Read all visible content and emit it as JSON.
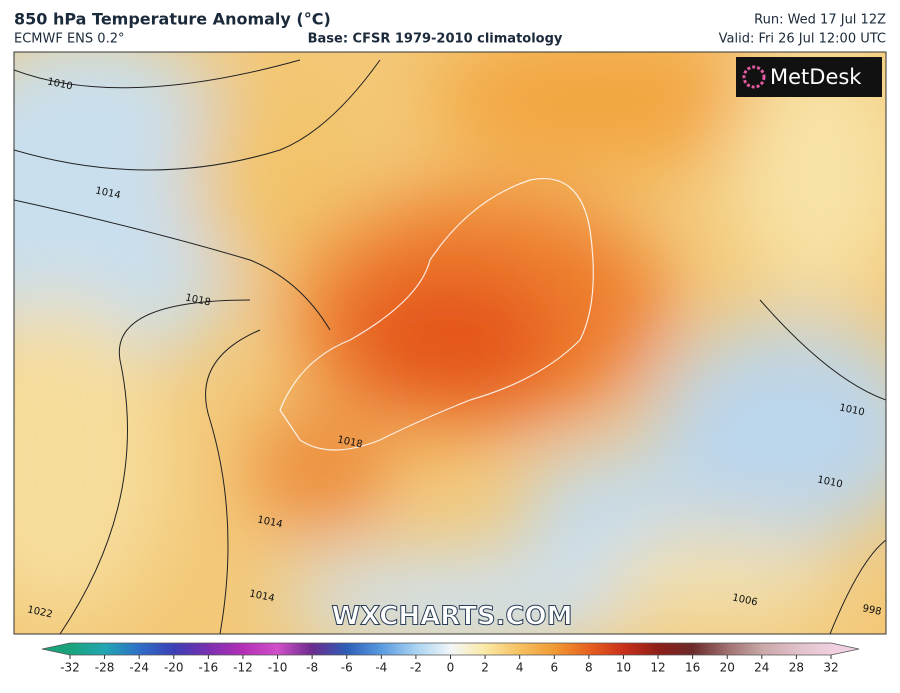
{
  "header": {
    "title": "850 hPa Temperature Anomaly (°C)",
    "model": "ECMWF ENS 0.2°",
    "base": "Base: CFSR 1979-2010 climatology",
    "run": "Run: Wed 17 Jul 12Z",
    "valid": "Valid: Fri 26 Jul 12:00 UTC"
  },
  "map": {
    "logo": "MetDesk",
    "watermark": "WXCHARTS.COM",
    "isobar_labels": [
      "1010",
      "1014",
      "1018",
      "1022",
      "1018",
      "1014",
      "1010",
      "1010",
      "1014",
      "1006",
      "998"
    ]
  },
  "colorbar": {
    "ticks": [
      -32,
      -28,
      -24,
      -20,
      -16,
      -12,
      -10,
      -8,
      -6,
      -4,
      -2,
      0,
      2,
      4,
      6,
      8,
      10,
      12,
      16,
      20,
      24,
      28,
      32
    ],
    "colors": [
      "#1aa37a",
      "#22a6b3",
      "#2f6fc7",
      "#3b3fb5",
      "#7a2fb0",
      "#b42fb6",
      "#d04fc9",
      "#6a2b8e",
      "#2d5fb8",
      "#5a9be0",
      "#a9d3f2",
      "#f2f6f8",
      "#fbe9a6",
      "#f6c060",
      "#f09a33",
      "#e8601f",
      "#c9301a",
      "#8e1e18",
      "#6b2a2a",
      "#a07070",
      "#c8a8a8",
      "#e0c0c8",
      "#f0d0e0"
    ]
  }
}
